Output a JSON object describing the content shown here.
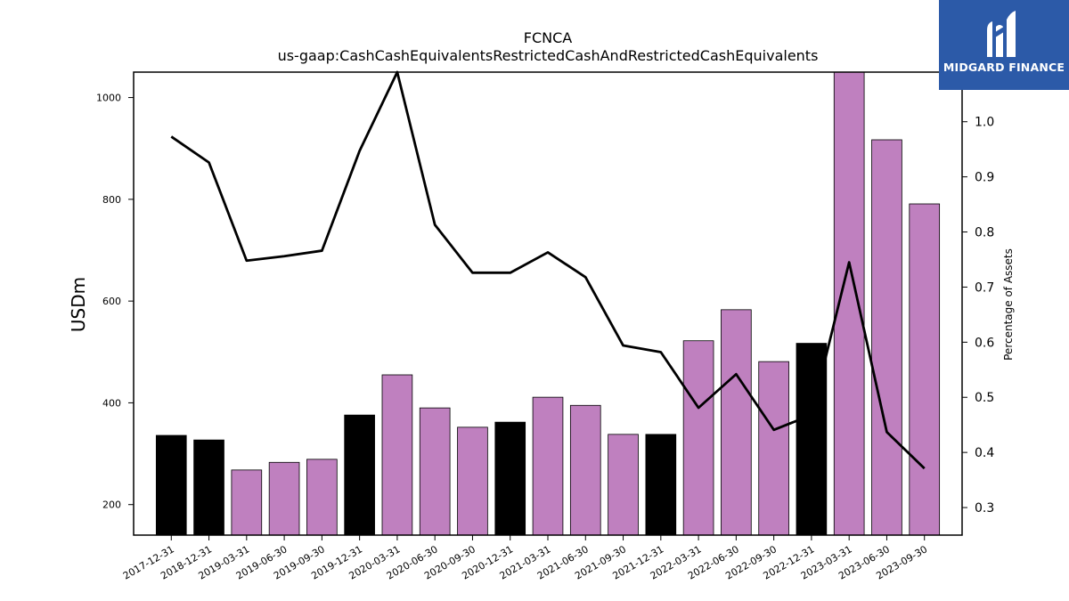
{
  "chart_data": {
    "type": "bar",
    "title": "FCNCA",
    "subtitle": "us-gaap:CashCashEquivalentsRestrictedCashAndRestrictedCashEquivalents",
    "ylabel": "USDm",
    "y2label": "Percentage of Assets",
    "ylim": [
      140,
      1050
    ],
    "y2lim": [
      0.25,
      1.09
    ],
    "yticks": [
      200,
      400,
      600,
      800,
      1000
    ],
    "y2ticks": [
      0.3,
      0.4,
      0.5,
      0.6,
      0.7,
      0.8,
      0.9,
      1.0
    ],
    "categories": [
      "2017-12-31",
      "2018-12-31",
      "2019-03-31",
      "2019-06-30",
      "2019-09-30",
      "2019-12-31",
      "2020-03-31",
      "2020-06-30",
      "2020-09-30",
      "2020-12-31",
      "2021-03-31",
      "2021-06-30",
      "2021-09-30",
      "2021-12-31",
      "2022-03-31",
      "2022-06-30",
      "2022-09-30",
      "2022-12-31",
      "2023-03-31",
      "2023-06-30",
      "2023-09-30"
    ],
    "values": [
      336,
      327,
      268,
      283,
      289,
      376,
      455,
      390,
      352,
      362,
      411,
      395,
      338,
      338,
      522,
      583,
      481,
      517,
      1050,
      917,
      791
    ],
    "bar_colors": [
      "#000000",
      "#000000",
      "#bf80bf",
      "#bf80bf",
      "#bf80bf",
      "#000000",
      "#bf80bf",
      "#bf80bf",
      "#bf80bf",
      "#000000",
      "#bf80bf",
      "#bf80bf",
      "#bf80bf",
      "#000000",
      "#bf80bf",
      "#bf80bf",
      "#bf80bf",
      "#000000",
      "#bf80bf",
      "#bf80bf",
      "#bf80bf"
    ],
    "line": {
      "axis": "right",
      "color": "#000000",
      "values": [
        0.973,
        0.926,
        0.748,
        0.756,
        0.766,
        0.947,
        1.09,
        0.813,
        0.726,
        0.726,
        0.763,
        0.718,
        0.594,
        0.582,
        0.481,
        0.542,
        0.441,
        0.468,
        0.745,
        0.437,
        0.371
      ]
    }
  },
  "logo": {
    "text": "MIDGARD FINANCE",
    "background": "#2c5aa8"
  }
}
